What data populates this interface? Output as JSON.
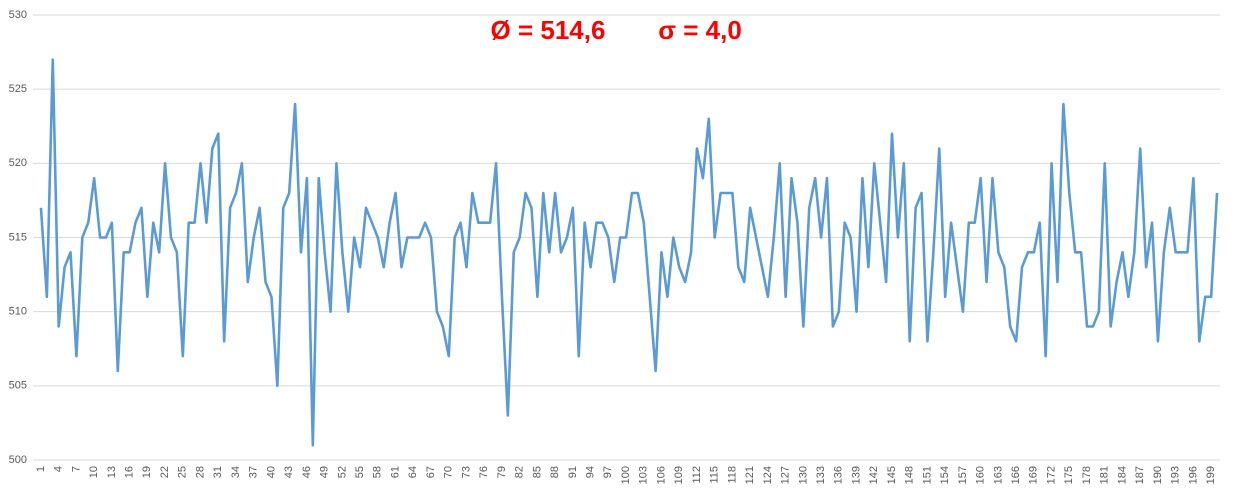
{
  "chart_data": {
    "type": "line",
    "annotations": [
      "Ø = 514,6",
      "σ = 4,0"
    ],
    "categories": [
      "1",
      null,
      null,
      "4",
      null,
      null,
      "7",
      null,
      null,
      "10",
      null,
      null,
      "13",
      null,
      null,
      "16",
      null,
      null,
      "19",
      null,
      null,
      "22",
      null,
      null,
      "25",
      null,
      null,
      "28",
      null,
      null,
      "31",
      null,
      null,
      "34",
      null,
      null,
      "37",
      null,
      null,
      "40",
      null,
      null,
      "43",
      null,
      null,
      "46",
      null,
      null,
      "49",
      null,
      null,
      "52",
      null,
      null,
      "55",
      null,
      null,
      "58",
      null,
      null,
      "61",
      null,
      null,
      "64",
      null,
      null,
      "67",
      null,
      null,
      "70",
      null,
      null,
      "73",
      null,
      null,
      "76",
      null,
      null,
      "79",
      null,
      null,
      "82",
      null,
      null,
      "85",
      null,
      null,
      "88",
      null,
      null,
      "91",
      null,
      null,
      "94",
      null,
      null,
      "97",
      null,
      null,
      "100",
      null,
      null,
      "103",
      null,
      null,
      "106",
      null,
      null,
      "109",
      null,
      null,
      "112",
      null,
      null,
      "115",
      null,
      null,
      "118",
      null,
      null,
      "121",
      null,
      null,
      "124",
      null,
      null,
      "127",
      null,
      null,
      "130",
      null,
      null,
      "133",
      null,
      null,
      "136",
      null,
      null,
      "139",
      null,
      null,
      "142",
      null,
      null,
      "145",
      null,
      null,
      "148",
      null,
      null,
      "151",
      null,
      null,
      "154",
      null,
      null,
      "157",
      null,
      null,
      "160",
      null,
      null,
      "163",
      null,
      null,
      "166",
      null,
      null,
      "169",
      null,
      null,
      "172",
      null,
      null,
      "175",
      null,
      null,
      "178",
      null,
      null,
      "181",
      null,
      null,
      "184",
      null,
      null,
      "187",
      null,
      null,
      "190",
      null,
      null,
      "193",
      null,
      null,
      "196",
      null,
      null,
      "199",
      null
    ],
    "values": [
      517,
      511,
      527,
      509,
      513,
      514,
      507,
      515,
      516,
      519,
      515,
      515,
      516,
      506,
      514,
      514,
      516,
      517,
      511,
      516,
      514,
      520,
      515,
      514,
      507,
      516,
      516,
      520,
      516,
      521,
      522,
      508,
      517,
      518,
      520,
      512,
      515,
      517,
      512,
      511,
      505,
      517,
      518,
      524,
      514,
      519,
      501,
      519,
      514,
      510,
      520,
      514,
      510,
      515,
      513,
      517,
      516,
      515,
      513,
      516,
      518,
      513,
      515,
      515,
      515,
      516,
      515,
      510,
      509,
      507,
      515,
      516,
      513,
      518,
      516,
      516,
      516,
      520,
      511,
      503,
      514,
      515,
      518,
      517,
      511,
      518,
      514,
      518,
      514,
      515,
      517,
      507,
      516,
      513,
      516,
      516,
      515,
      512,
      515,
      515,
      518,
      518,
      516,
      511,
      506,
      514,
      511,
      515,
      513,
      512,
      514,
      521,
      519,
      523,
      515,
      518,
      518,
      518,
      513,
      512,
      517,
      515,
      513,
      511,
      515,
      520,
      511,
      519,
      516,
      509,
      517,
      519,
      515,
      519,
      509,
      510,
      516,
      515,
      510,
      519,
      513,
      520,
      516,
      512,
      522,
      515,
      520,
      508,
      517,
      518,
      508,
      514,
      521,
      511,
      516,
      513,
      510,
      516,
      516,
      519,
      512,
      519,
      514,
      513,
      509,
      508,
      513,
      514,
      514,
      516,
      507,
      520,
      512,
      524,
      518,
      514,
      514,
      509,
      509,
      510,
      520,
      509,
      512,
      514,
      511,
      514,
      521,
      513,
      516,
      508,
      514,
      517,
      514,
      514,
      514,
      519,
      508,
      511,
      511,
      518
    ],
    "color": "#5b9bd5",
    "annotation_color": "#ff0000",
    "ylim": [
      500,
      530
    ],
    "yticks": [
      500,
      505,
      510,
      515,
      520,
      525,
      530
    ],
    "grid": true
  }
}
